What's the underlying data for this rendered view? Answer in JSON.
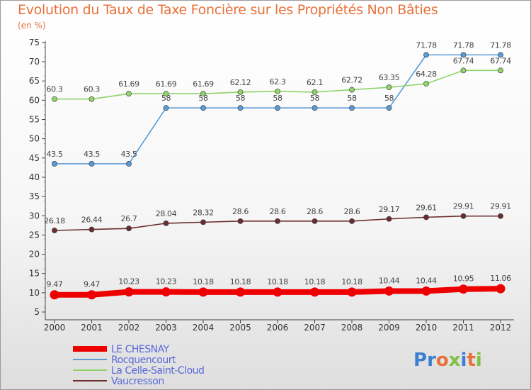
{
  "title": "Evolution du Taux de Taxe Foncière sur les Propriétés Non Bâties",
  "unit": "(en %)",
  "logo": "Proxiti",
  "chart_data": {
    "type": "line",
    "categories": [
      "2000",
      "2001",
      "2002",
      "2003",
      "2004",
      "2005",
      "2006",
      "2007",
      "2008",
      "2009",
      "2010",
      "2011",
      "2012"
    ],
    "ylim": [
      5,
      75
    ],
    "yticks": [
      5,
      10,
      15,
      20,
      25,
      30,
      35,
      40,
      45,
      50,
      55,
      60,
      65,
      70,
      75
    ],
    "grid": false,
    "legend_position": "bottom-left",
    "series": [
      {
        "name": "Rocquencourt",
        "color": "#5b9bd5",
        "values": [
          43.5,
          43.5,
          43.5,
          58,
          58,
          58,
          58,
          58,
          58,
          58,
          71.78,
          71.78,
          71.78
        ],
        "labels": [
          "43.5",
          "43.5",
          "43.5",
          "58",
          "58",
          "58",
          "58",
          "58",
          "58",
          "58",
          "71.78",
          "71.78",
          "71.78"
        ]
      },
      {
        "name": "La Celle-Saint-Cloud",
        "color": "#8fd36a",
        "values": [
          60.3,
          60.3,
          61.69,
          61.69,
          61.69,
          62.12,
          62.3,
          62.1,
          62.72,
          63.35,
          64.28,
          67.74,
          67.74
        ],
        "labels": [
          "60.3",
          "60.3",
          "61.69",
          "61.69",
          "61.69",
          "62.12",
          "62.3",
          "62.1",
          "62.72",
          "63.35",
          "64.28",
          "67.74",
          "67.74"
        ]
      },
      {
        "name": "Vaucresson",
        "color": "#6b2d2d",
        "values": [
          26.18,
          26.44,
          26.7,
          28.04,
          28.32,
          28.6,
          28.6,
          28.6,
          28.6,
          29.17,
          29.61,
          29.91,
          29.91
        ],
        "labels": [
          "26.18",
          "26.44",
          "26.7",
          "28.04",
          "28.32",
          "28.6",
          "28.6",
          "28.6",
          "28.6",
          "29.17",
          "29.61",
          "29.91",
          "29.91"
        ]
      },
      {
        "name": "LE CHESNAY",
        "color": "#ee0000",
        "thick": true,
        "values": [
          9.47,
          9.47,
          10.23,
          10.23,
          10.18,
          10.18,
          10.18,
          10.18,
          10.18,
          10.44,
          10.44,
          10.95,
          11.06
        ],
        "labels": [
          "9.47",
          "9.47",
          "10.23",
          "10.23",
          "10.18",
          "10.18",
          "10.18",
          "10.18",
          "10.18",
          "10.44",
          "10.44",
          "10.95",
          "11.06"
        ]
      }
    ],
    "legend": [
      "LE CHESNAY",
      "Rocquencourt",
      "La Celle-Saint-Cloud",
      "Vaucresson"
    ]
  }
}
